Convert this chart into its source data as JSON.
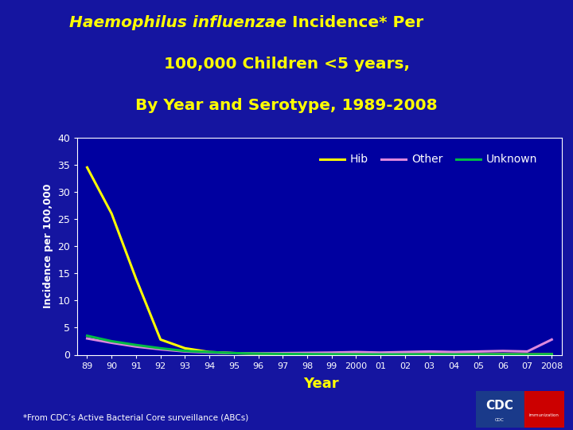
{
  "title_italic": "Haemophilus influenzae",
  "title_line1_normal": " Incidence* Per",
  "title_line2": "100,000 Children <5 years,",
  "title_line3": "By Year and Serotype, 1989-2008",
  "title_color": "#FFFF00",
  "background_color": "#1515a0",
  "plot_bg_color": "#0000a0",
  "xlabel": "Year",
  "ylabel": "Incidence per 100,000",
  "xlabel_color": "#FFFF00",
  "ylabel_color": "white",
  "tick_color": "white",
  "years": [
    1989,
    1990,
    1991,
    1992,
    1993,
    1994,
    1995,
    1996,
    1997,
    1998,
    1999,
    2000,
    2001,
    2002,
    2003,
    2004,
    2005,
    2006,
    2007,
    2008
  ],
  "tick_labels": [
    "89",
    "90",
    "91",
    "92",
    "93",
    "94",
    "95",
    "96",
    "97",
    "98",
    "99",
    "2000",
    "01",
    "02",
    "03",
    "04",
    "05",
    "06",
    "07",
    "2008"
  ],
  "hib": [
    34.5,
    26.0,
    14.0,
    2.8,
    1.2,
    0.5,
    0.3,
    0.2,
    0.15,
    0.12,
    0.1,
    0.1,
    0.08,
    0.07,
    0.08,
    0.07,
    0.06,
    0.08,
    0.06,
    0.08
  ],
  "other": [
    3.0,
    2.2,
    1.5,
    1.0,
    0.6,
    0.4,
    0.3,
    0.25,
    0.3,
    0.35,
    0.4,
    0.5,
    0.4,
    0.5,
    0.6,
    0.5,
    0.6,
    0.7,
    0.6,
    2.8
  ],
  "unknown": [
    3.5,
    2.5,
    1.8,
    1.2,
    0.7,
    0.5,
    0.3,
    0.2,
    0.15,
    0.12,
    0.1,
    0.08,
    0.07,
    0.06,
    0.06,
    0.05,
    0.05,
    0.05,
    0.04,
    0.1
  ],
  "hib_color": "#FFFF00",
  "other_color": "#DD88DD",
  "unknown_color": "#00BB44",
  "ylim": [
    0,
    40
  ],
  "yticks": [
    0,
    5,
    10,
    15,
    20,
    25,
    30,
    35,
    40
  ],
  "legend_labels": [
    "Hib",
    "Other",
    "Unknown"
  ],
  "footnote": "*From CDC’s Active Bacterial Core surveillance (ABCs)",
  "footnote_color": "white",
  "spine_color": "white",
  "linewidth": 2.2
}
